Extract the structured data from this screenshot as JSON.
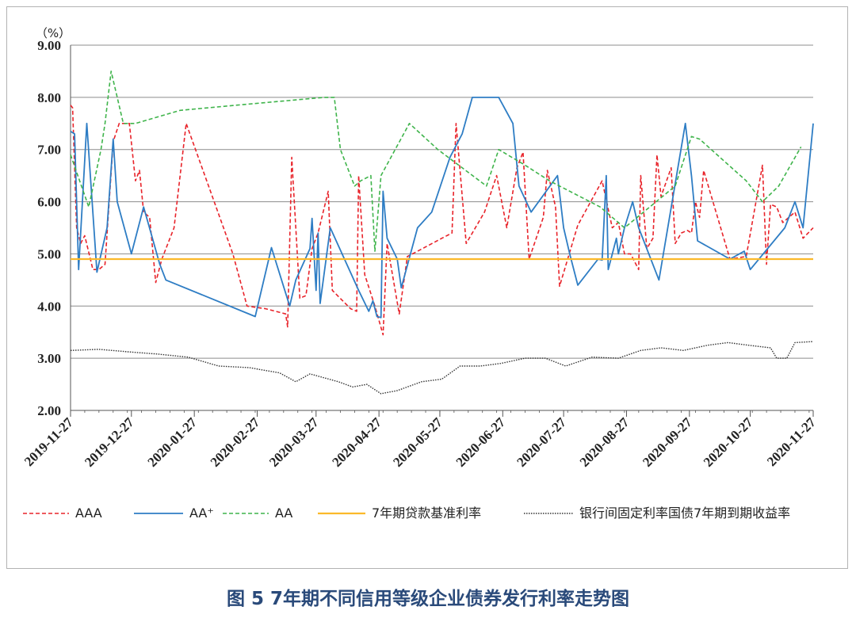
{
  "caption": "图 5 7年期不同信用等级企业债券发行利率走势图",
  "chart_data": {
    "type": "line",
    "title": "图 5 7年期不同信用等级企业债券发行利率走势图",
    "unit_label": "（%）",
    "ylim": [
      2.0,
      9.0
    ],
    "yticks": [
      "2.00",
      "3.00",
      "4.00",
      "5.00",
      "6.00",
      "7.00",
      "8.00",
      "9.00"
    ],
    "xlim": [
      "2019-11-27",
      "2020-11-27"
    ],
    "xticks": [
      "2019-11-27",
      "2019-12-27",
      "2020-01-27",
      "2020-02-27",
      "2020-03-27",
      "2020-04-27",
      "2020-05-27",
      "2020-06-27",
      "2020-07-27",
      "2020-08-27",
      "2020-09-27",
      "2020-10-27",
      "2020-11-27"
    ],
    "grid": "horizontal",
    "legend_position": "bottom",
    "series": [
      {
        "name": "AAA",
        "color": "#e8232a",
        "style": "dashed",
        "points": [
          [
            "2019-11-27",
            7.85
          ],
          [
            "2019-11-28",
            7.8
          ],
          [
            "2019-11-30",
            5.5
          ],
          [
            "2019-12-02",
            5.2
          ],
          [
            "2019-12-04",
            5.35
          ],
          [
            "2019-12-08",
            4.7
          ],
          [
            "2019-12-11",
            4.7
          ],
          [
            "2019-12-14",
            4.8
          ],
          [
            "2019-12-18",
            7.15
          ],
          [
            "2019-12-21",
            7.5
          ],
          [
            "2019-12-26",
            7.5
          ],
          [
            "2019-12-29",
            6.4
          ],
          [
            "2019-12-31",
            6.6
          ],
          [
            "2020-01-02",
            5.8
          ],
          [
            "2020-01-05",
            5.7
          ],
          [
            "2020-01-08",
            4.45
          ],
          [
            "2020-01-11",
            4.9
          ],
          [
            "2020-01-17",
            5.5
          ],
          [
            "2020-01-23",
            7.5
          ],
          [
            "2020-02-15",
            5.0
          ],
          [
            "2020-02-22",
            4.0
          ],
          [
            "2020-03-02",
            3.95
          ],
          [
            "2020-03-12",
            3.85
          ],
          [
            "2020-03-13",
            3.6
          ],
          [
            "2020-03-15",
            6.85
          ],
          [
            "2020-03-19",
            4.15
          ],
          [
            "2020-03-22",
            4.2
          ],
          [
            "2020-03-25",
            5.1
          ],
          [
            "2020-03-28",
            5.4
          ],
          [
            "2020-04-02",
            6.2
          ],
          [
            "2020-04-04",
            4.3
          ],
          [
            "2020-04-13",
            3.95
          ],
          [
            "2020-04-16",
            3.9
          ],
          [
            "2020-04-17",
            6.5
          ],
          [
            "2020-04-20",
            4.6
          ],
          [
            "2020-04-25",
            4.0
          ],
          [
            "2020-04-29",
            3.45
          ],
          [
            "2020-05-01",
            5.2
          ],
          [
            "2020-05-07",
            3.85
          ],
          [
            "2020-05-11",
            4.95
          ],
          [
            "2020-05-16",
            5.05
          ],
          [
            "2020-05-28",
            5.3
          ],
          [
            "2020-06-02",
            5.4
          ],
          [
            "2020-06-04",
            7.5
          ],
          [
            "2020-06-09",
            5.2
          ],
          [
            "2020-06-18",
            5.8
          ],
          [
            "2020-06-24",
            6.5
          ],
          [
            "2020-06-29",
            5.5
          ],
          [
            "2020-07-04",
            6.65
          ],
          [
            "2020-07-07",
            6.95
          ],
          [
            "2020-07-10",
            4.9
          ],
          [
            "2020-07-17",
            5.7
          ],
          [
            "2020-07-19",
            6.6
          ],
          [
            "2020-07-23",
            5.9
          ],
          [
            "2020-07-25",
            4.38
          ],
          [
            "2020-08-03",
            5.55
          ],
          [
            "2020-08-15",
            6.4
          ],
          [
            "2020-08-20",
            5.5
          ],
          [
            "2020-08-23",
            5.6
          ],
          [
            "2020-08-26",
            5.0
          ],
          [
            "2020-08-29",
            5.0
          ],
          [
            "2020-09-02",
            4.7
          ],
          [
            "2020-09-03",
            6.5
          ],
          [
            "2020-09-06",
            5.1
          ],
          [
            "2020-09-09",
            5.3
          ],
          [
            "2020-09-11",
            6.9
          ],
          [
            "2020-09-13",
            6.1
          ],
          [
            "2020-09-18",
            6.65
          ],
          [
            "2020-09-20",
            5.2
          ],
          [
            "2020-09-23",
            5.4
          ],
          [
            "2020-09-26",
            5.45
          ],
          [
            "2020-09-28",
            5.4
          ],
          [
            "2020-09-30",
            6.0
          ],
          [
            "2020-10-02",
            5.7
          ],
          [
            "2020-10-04",
            6.6
          ],
          [
            "2020-10-17",
            4.9
          ],
          [
            "2020-10-25",
            4.95
          ],
          [
            "2020-11-02",
            6.7
          ],
          [
            "2020-11-04",
            4.8
          ],
          [
            "2020-11-06",
            5.95
          ],
          [
            "2020-11-09",
            5.9
          ],
          [
            "2020-11-12",
            5.6
          ],
          [
            "2020-11-18",
            5.8
          ],
          [
            "2020-11-22",
            5.3
          ],
          [
            "2020-11-27",
            5.5
          ]
        ]
      },
      {
        "name": "AA⁺",
        "color": "#2e7dc4",
        "style": "solid",
        "points": [
          [
            "2019-11-27",
            7.35
          ],
          [
            "2019-11-29",
            7.3
          ],
          [
            "2019-12-01",
            4.7
          ],
          [
            "2019-12-05",
            7.5
          ],
          [
            "2019-12-10",
            4.65
          ],
          [
            "2019-12-15",
            5.5
          ],
          [
            "2019-12-18",
            7.2
          ],
          [
            "2019-12-20",
            6.0
          ],
          [
            "2019-12-27",
            5.0
          ],
          [
            "2020-01-02",
            5.9
          ],
          [
            "2020-01-10",
            4.8
          ],
          [
            "2020-01-13",
            4.5
          ],
          [
            "2020-02-26",
            3.8
          ],
          [
            "2020-03-05",
            5.12
          ],
          [
            "2020-03-14",
            4.0
          ],
          [
            "2020-03-17",
            4.5
          ],
          [
            "2020-03-24",
            5.1
          ],
          [
            "2020-03-25",
            5.68
          ],
          [
            "2020-03-27",
            4.3
          ],
          [
            "2020-03-28",
            5.4
          ],
          [
            "2020-03-29",
            4.05
          ],
          [
            "2020-04-03",
            5.5
          ],
          [
            "2020-04-17",
            4.3
          ],
          [
            "2020-04-22",
            3.9
          ],
          [
            "2020-04-24",
            4.1
          ],
          [
            "2020-04-26",
            3.8
          ],
          [
            "2020-04-28",
            3.78
          ],
          [
            "2020-04-29",
            6.2
          ],
          [
            "2020-05-01",
            5.3
          ],
          [
            "2020-05-06",
            4.9
          ],
          [
            "2020-05-08",
            4.35
          ],
          [
            "2020-05-16",
            5.5
          ],
          [
            "2020-05-23",
            5.8
          ],
          [
            "2020-06-01",
            6.85
          ],
          [
            "2020-06-07",
            7.3
          ],
          [
            "2020-06-12",
            8.0
          ],
          [
            "2020-06-25",
            8.0
          ],
          [
            "2020-07-02",
            7.5
          ],
          [
            "2020-07-05",
            6.3
          ],
          [
            "2020-07-11",
            5.8
          ],
          [
            "2020-07-24",
            6.5
          ],
          [
            "2020-07-27",
            5.5
          ],
          [
            "2020-07-30",
            5.0
          ],
          [
            "2020-08-03",
            4.4
          ],
          [
            "2020-08-13",
            4.9
          ],
          [
            "2020-08-15",
            4.88
          ],
          [
            "2020-08-17",
            6.5
          ],
          [
            "2020-08-18",
            4.7
          ],
          [
            "2020-08-22",
            5.3
          ],
          [
            "2020-08-23",
            5.0
          ],
          [
            "2020-08-26",
            5.5
          ],
          [
            "2020-08-30",
            6.0
          ],
          [
            "2020-09-02",
            5.5
          ],
          [
            "2020-09-12",
            4.5
          ],
          [
            "2020-09-25",
            7.5
          ],
          [
            "2020-09-28",
            6.5
          ],
          [
            "2020-10-01",
            5.25
          ],
          [
            "2020-10-17",
            4.9
          ],
          [
            "2020-10-24",
            5.05
          ],
          [
            "2020-10-27",
            4.7
          ],
          [
            "2020-11-13",
            5.5
          ],
          [
            "2020-11-18",
            6.0
          ],
          [
            "2020-11-22",
            5.5
          ],
          [
            "2020-11-27",
            7.5
          ]
        ]
      },
      {
        "name": "AA",
        "color": "#3fb44b",
        "style": "dashed",
        "points": [
          [
            "2019-11-27",
            6.9
          ],
          [
            "2019-12-06",
            5.9
          ],
          [
            "2019-12-12",
            7.0
          ],
          [
            "2019-12-14",
            7.5
          ],
          [
            "2019-12-17",
            8.5
          ],
          [
            "2019-12-23",
            7.5
          ],
          [
            "2019-12-29",
            7.5
          ],
          [
            "2020-01-20",
            7.75
          ],
          [
            "2020-02-17",
            7.85
          ],
          [
            "2020-03-31",
            8.0
          ],
          [
            "2020-04-05",
            8.0
          ],
          [
            "2020-04-08",
            7.0
          ],
          [
            "2020-04-15",
            6.3
          ],
          [
            "2020-04-18",
            6.4
          ],
          [
            "2020-04-23",
            6.5
          ],
          [
            "2020-04-25",
            5.05
          ],
          [
            "2020-04-28",
            6.5
          ],
          [
            "2020-05-12",
            7.5
          ],
          [
            "2020-05-26",
            7.0
          ],
          [
            "2020-06-19",
            6.3
          ],
          [
            "2020-06-25",
            7.0
          ],
          [
            "2020-07-08",
            6.7
          ],
          [
            "2020-07-20",
            6.4
          ],
          [
            "2020-08-14",
            5.9
          ],
          [
            "2020-08-26",
            5.5
          ],
          [
            "2020-09-20",
            6.3
          ],
          [
            "2020-09-28",
            7.25
          ],
          [
            "2020-10-02",
            7.2
          ],
          [
            "2020-10-25",
            6.4
          ],
          [
            "2020-11-02",
            6.0
          ],
          [
            "2020-11-10",
            6.3
          ],
          [
            "2020-11-21",
            7.05
          ]
        ]
      },
      {
        "name": "7年期贷款基准利率",
        "color": "#fbb92a",
        "style": "solid",
        "points": [
          [
            "2019-11-27",
            4.9
          ],
          [
            "2020-11-27",
            4.9
          ]
        ]
      },
      {
        "name": "银行间固定利率国债7年期到期收益率",
        "color": "#333333",
        "style": "dotted",
        "points": [
          [
            "2019-11-27",
            3.15
          ],
          [
            "2019-12-11",
            3.17
          ],
          [
            "2019-12-26",
            3.12
          ],
          [
            "2020-01-09",
            3.08
          ],
          [
            "2020-01-24",
            3.02
          ],
          [
            "2020-02-08",
            2.85
          ],
          [
            "2020-02-23",
            2.82
          ],
          [
            "2020-03-09",
            2.72
          ],
          [
            "2020-03-17",
            2.55
          ],
          [
            "2020-03-24",
            2.7
          ],
          [
            "2020-04-07",
            2.55
          ],
          [
            "2020-04-14",
            2.45
          ],
          [
            "2020-04-21",
            2.5
          ],
          [
            "2020-04-28",
            2.32
          ],
          [
            "2020-05-06",
            2.38
          ],
          [
            "2020-05-18",
            2.55
          ],
          [
            "2020-05-28",
            2.6
          ],
          [
            "2020-06-06",
            2.85
          ],
          [
            "2020-06-16",
            2.85
          ],
          [
            "2020-06-26",
            2.9
          ],
          [
            "2020-07-08",
            3.0
          ],
          [
            "2020-07-18",
            3.0
          ],
          [
            "2020-07-28",
            2.85
          ],
          [
            "2020-08-10",
            3.02
          ],
          [
            "2020-08-23",
            3.0
          ],
          [
            "2020-09-03",
            3.15
          ],
          [
            "2020-09-13",
            3.2
          ],
          [
            "2020-09-24",
            3.15
          ],
          [
            "2020-10-06",
            3.25
          ],
          [
            "2020-10-16",
            3.3
          ],
          [
            "2020-10-26",
            3.25
          ],
          [
            "2020-11-06",
            3.2
          ],
          [
            "2020-11-09",
            3.0
          ],
          [
            "2020-11-14",
            3.0
          ],
          [
            "2020-11-18",
            3.3
          ],
          [
            "2020-11-27",
            3.32
          ]
        ]
      }
    ]
  }
}
